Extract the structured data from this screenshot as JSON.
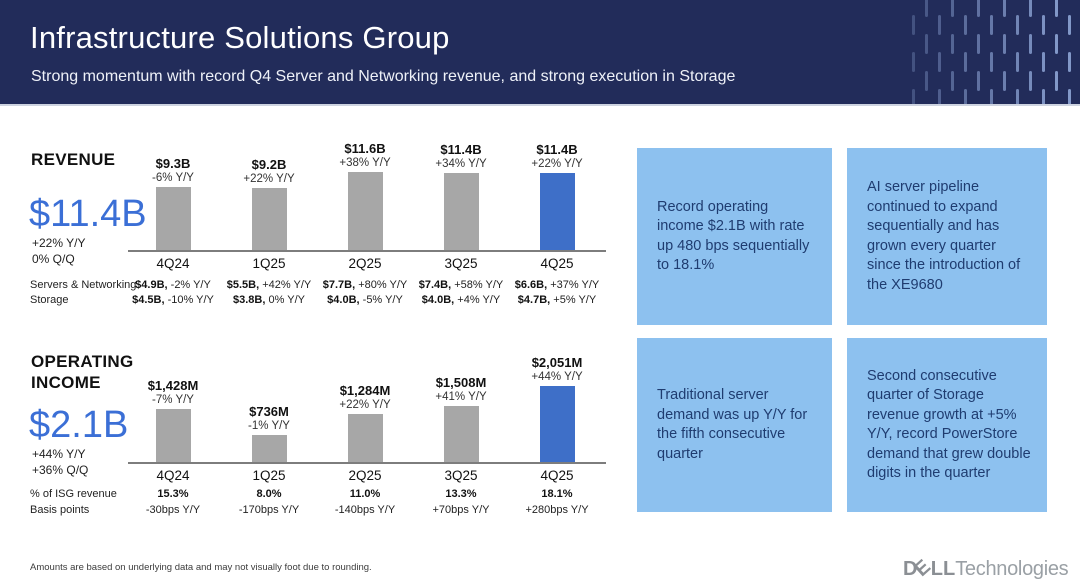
{
  "slide": {
    "title": "Infrastructure Solutions Group",
    "subtitle": "Strong momentum with record Q4 Server and Networking revenue, and strong execution in Storage"
  },
  "colors": {
    "header_navy": "#222c5a",
    "headline_blue": "#3b6fd6",
    "highlight_blue": "#3e6fc8",
    "bar_gray": "#a7a7a7",
    "callout_blue": "#8dc1ef",
    "callout_text_navy": "#1f3c70"
  },
  "chart_data": [
    {
      "type": "bar",
      "section_label": "REVENUE",
      "headline": {
        "value": "$11.4B",
        "yoy": "+22% Y/Y",
        "qoq": "0% Q/Q"
      },
      "categories": [
        "4Q24",
        "1Q25",
        "2Q25",
        "3Q25",
        "4Q25"
      ],
      "unit": "$B",
      "series": [
        {
          "name": "ISG revenue",
          "values": [
            9.3,
            9.2,
            11.6,
            11.4,
            11.4
          ]
        }
      ],
      "bar_value_labels": [
        "$9.3B",
        "$9.2B",
        "$11.6B",
        "$11.4B",
        "$11.4B"
      ],
      "bar_delta_labels": [
        "-6% Y/Y",
        "+22% Y/Y",
        "+38% Y/Y",
        "+34% Y/Y",
        "+22% Y/Y"
      ],
      "highlight_index": 4,
      "legend_position": "none",
      "grid": false,
      "detail_rows": [
        {
          "label": "Servers & Networking",
          "cells": [
            {
              "value": "$4.9B,",
              "delta": "-2% Y/Y"
            },
            {
              "value": "$5.5B,",
              "delta": "+42% Y/Y"
            },
            {
              "value": "$7.7B,",
              "delta": "+80% Y/Y"
            },
            {
              "value": "$7.4B,",
              "delta": "+58% Y/Y"
            },
            {
              "value": "$6.6B,",
              "delta": "+37% Y/Y"
            }
          ]
        },
        {
          "label": "Storage",
          "cells": [
            {
              "value": "$4.5B,",
              "delta": "-10% Y/Y"
            },
            {
              "value": "$3.8B,",
              "delta": "0% Y/Y"
            },
            {
              "value": "$4.0B,",
              "delta": "-5% Y/Y"
            },
            {
              "value": "$4.0B,",
              "delta": "+4% Y/Y"
            },
            {
              "value": "$4.7B,",
              "delta": "+5% Y/Y"
            }
          ]
        }
      ]
    },
    {
      "type": "bar",
      "section_label": "OPERATING INCOME",
      "headline": {
        "value": "$2.1B",
        "yoy": "+44% Y/Y",
        "qoq": "+36% Q/Q"
      },
      "categories": [
        "4Q24",
        "1Q25",
        "2Q25",
        "3Q25",
        "4Q25"
      ],
      "unit": "$M",
      "series": [
        {
          "name": "ISG operating income",
          "values": [
            1428,
            736,
            1284,
            1508,
            2051
          ]
        }
      ],
      "bar_value_labels": [
        "$1,428M",
        "$736M",
        "$1,284M",
        "$1,508M",
        "$2,051M"
      ],
      "bar_delta_labels": [
        "-7% Y/Y",
        "-1% Y/Y",
        "+22% Y/Y",
        "+41% Y/Y",
        "+44% Y/Y"
      ],
      "highlight_index": 4,
      "legend_position": "none",
      "grid": false,
      "detail_rows": [
        {
          "label": "% of ISG revenue",
          "cells": [
            {
              "value": "15.3%"
            },
            {
              "value": "8.0%"
            },
            {
              "value": "11.0%"
            },
            {
              "value": "13.3%"
            },
            {
              "value": "18.1%"
            }
          ]
        },
        {
          "label": "Basis points",
          "cells": [
            {
              "value": "-30bps Y/Y"
            },
            {
              "value": "-170bps Y/Y"
            },
            {
              "value": "-140bps Y/Y"
            },
            {
              "value": "+70bps Y/Y"
            },
            {
              "value": "+280bps Y/Y"
            }
          ]
        }
      ]
    }
  ],
  "callouts": [
    {
      "text": "Record operating income $2.1B with rate up 480 bps sequentially to 18.1%"
    },
    {
      "text": "AI server pipeline continued to expand sequentially and has grown every quarter since the introduction of the XE9680"
    },
    {
      "text": "Traditional server demand was up Y/Y for the fifth consecutive quarter"
    },
    {
      "text": "Second consecutive quarter of Storage revenue growth at +5% Y/Y, record PowerStore demand that grew double digits in the quarter"
    }
  ],
  "footer": {
    "footnote": "Amounts are based on underlying data and may not visually foot due to rounding.",
    "logo": {
      "prefix": "D",
      "tilted_e": "E",
      "suffix_letters": "LL",
      "wordmark": "Technologies"
    }
  }
}
